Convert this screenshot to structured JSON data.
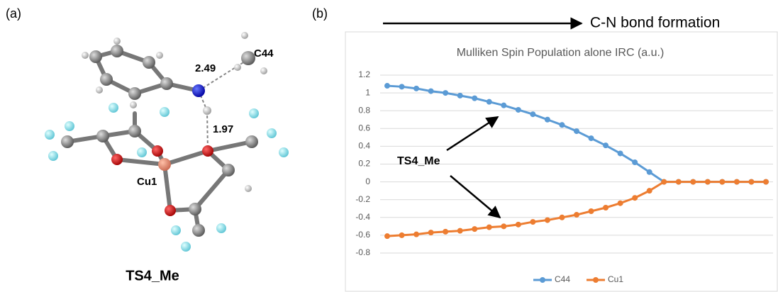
{
  "panel_a": {
    "label": "(a)",
    "caption": "TS4_Me",
    "distances": [
      "2.49",
      "1.97"
    ],
    "atoms": [
      "C44",
      "Cu1"
    ]
  },
  "panel_b": {
    "label": "(b)",
    "arrow_label": "C-N bond formation"
  },
  "chart_data": {
    "type": "line",
    "title": "Mulliken Spin Population alone IRC (a.u.)",
    "annotation": "TS4_Me",
    "categories": [
      null,
      null,
      null,
      null,
      null,
      null,
      null,
      null,
      null,
      null,
      null,
      null,
      null,
      null,
      null,
      null,
      null,
      null,
      null,
      null,
      null,
      null,
      null,
      null,
      null,
      null,
      null
    ],
    "series": [
      {
        "name": "C44",
        "color": "#5b9bd5",
        "values": [
          1.08,
          1.07,
          1.05,
          1.02,
          1.0,
          0.97,
          0.94,
          0.9,
          0.86,
          0.81,
          0.76,
          0.7,
          0.64,
          0.57,
          0.49,
          0.41,
          0.32,
          0.22,
          0.11,
          0,
          0,
          0,
          0,
          0,
          0,
          0,
          0
        ]
      },
      {
        "name": "Cu1",
        "color": "#ed7d31",
        "values": [
          -0.61,
          -0.6,
          -0.59,
          -0.57,
          -0.56,
          -0.55,
          -0.53,
          -0.51,
          -0.5,
          -0.48,
          -0.45,
          -0.43,
          -0.4,
          -0.37,
          -0.33,
          -0.29,
          -0.24,
          -0.18,
          -0.1,
          0,
          0,
          0,
          0,
          0,
          0,
          0,
          0
        ]
      }
    ],
    "ylim": [
      -0.8,
      1.2
    ],
    "yticks": [
      -0.8,
      -0.6,
      -0.4,
      -0.2,
      0,
      0.2,
      0.4,
      0.6,
      0.8,
      1,
      1.2
    ],
    "grid": true,
    "legend": "bottom"
  }
}
